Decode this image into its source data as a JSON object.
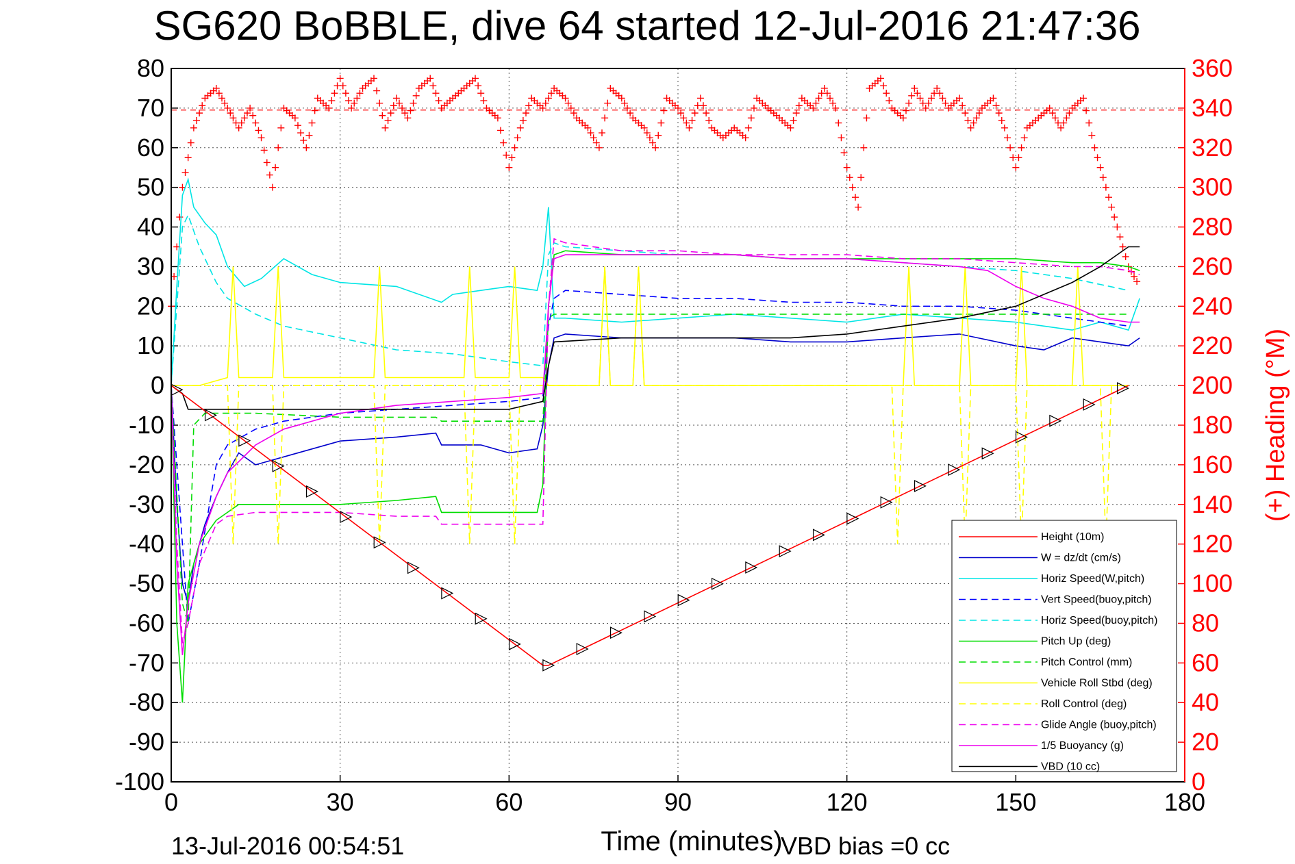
{
  "chart_data": {
    "type": "line",
    "title": "SG620 BoBBLE, dive 64 started 12-Jul-2016 21:47:36",
    "xlabel": "Time (minutes)",
    "ylabel_right": "(+) Heading (°M)",
    "xlim": [
      0,
      180
    ],
    "ylim": [
      -100,
      80
    ],
    "ylim_right": [
      0,
      360
    ],
    "x_ticks": [
      0,
      30,
      60,
      90,
      120,
      150,
      180
    ],
    "y_ticks": [
      80,
      70,
      60,
      50,
      40,
      30,
      20,
      10,
      0,
      -10,
      -20,
      -30,
      -40,
      -50,
      -60,
      -70,
      -80,
      -90,
      -100
    ],
    "y_right_ticks": [
      360,
      340,
      320,
      300,
      280,
      260,
      240,
      220,
      200,
      180,
      160,
      140,
      120,
      100,
      80,
      60,
      40,
      20,
      0
    ],
    "grid": true,
    "legend_position": "lower-right",
    "footer_left": "13-Jul-2016 00:54:51",
    "footer_center": "VBD bias =0 cc",
    "heading_reference": 339,
    "series": [
      {
        "name": "Height (10m)",
        "color": "#ff0000",
        "dash": "solid",
        "x": [
          0,
          66,
          67,
          170
        ],
        "y": [
          0,
          -70.6,
          -70.6,
          0
        ]
      },
      {
        "name": "W = dz/dt (cm/s)",
        "color": "#0000cc",
        "dash": "solid",
        "x": [
          0,
          1,
          2,
          3,
          4,
          6,
          8,
          10,
          12,
          15,
          20,
          30,
          40,
          47,
          48,
          55,
          60,
          65,
          66,
          67,
          68,
          70,
          80,
          90,
          100,
          110,
          120,
          130,
          140,
          150,
          155,
          160,
          165,
          170,
          172
        ],
        "y": [
          0,
          -30,
          -50,
          -55,
          -45,
          -35,
          -28,
          -22,
          -17,
          -20,
          -18,
          -14,
          -13,
          -12,
          -15,
          -15,
          -17,
          -16,
          -10,
          5,
          12,
          13,
          12,
          12,
          12,
          11,
          11,
          12,
          13,
          10,
          9,
          12,
          11,
          10,
          12
        ]
      },
      {
        "name": "Horiz Speed(W,pitch)",
        "color": "#00e5e5",
        "dash": "solid",
        "x": [
          0,
          1,
          2,
          3,
          4,
          6,
          8,
          10,
          13,
          16,
          20,
          25,
          30,
          40,
          48,
          50,
          55,
          60,
          65,
          66,
          67,
          68,
          70,
          80,
          90,
          100,
          110,
          120,
          130,
          140,
          150,
          155,
          160,
          165,
          170,
          172
        ],
        "y": [
          0,
          25,
          48,
          52,
          45,
          41,
          38,
          30,
          25,
          27,
          32,
          28,
          26,
          25,
          21,
          23,
          24,
          25,
          24,
          30,
          45,
          17,
          17,
          16,
          17,
          18,
          17,
          16,
          18,
          17,
          16,
          15,
          14,
          16,
          14,
          22
        ]
      },
      {
        "name": "Vert Speed(buoy,pitch)",
        "color": "#0000ff",
        "dash": "dashed",
        "x": [
          0,
          2,
          3,
          5,
          8,
          10,
          15,
          20,
          30,
          40,
          50,
          60,
          66,
          67,
          68,
          70,
          80,
          90,
          100,
          110,
          120,
          130,
          140,
          150,
          160,
          170
        ],
        "y": [
          0,
          -40,
          -60,
          -45,
          -20,
          -15,
          -11,
          -9,
          -7,
          -6,
          -5,
          -4,
          -3,
          15,
          22,
          24,
          23,
          22,
          22,
          21,
          21,
          20,
          20,
          19,
          17,
          15
        ]
      },
      {
        "name": "Horiz Speed(buoy,pitch)",
        "color": "#00e5e5",
        "dash": "dashed",
        "x": [
          0,
          2,
          3,
          5,
          8,
          10,
          15,
          20,
          30,
          40,
          50,
          60,
          66,
          67,
          68,
          70,
          80,
          90,
          100,
          110,
          120,
          130,
          140,
          150,
          160,
          170
        ],
        "y": [
          0,
          40,
          43,
          35,
          26,
          22,
          18,
          15,
          12,
          9,
          8,
          6,
          5,
          33,
          36,
          35,
          34,
          33,
          33,
          32,
          32,
          31,
          30,
          29,
          27,
          24
        ]
      },
      {
        "name": "Pitch Up (deg)",
        "color": "#00dd00",
        "dash": "solid",
        "x": [
          0,
          1,
          2,
          3,
          5,
          8,
          10,
          12,
          15,
          20,
          30,
          40,
          47,
          48,
          55,
          60,
          65,
          66,
          67,
          68,
          70,
          80,
          90,
          100,
          110,
          120,
          130,
          140,
          150,
          160,
          165,
          170,
          172
        ],
        "y": [
          0,
          -60,
          -80,
          -50,
          -40,
          -34,
          -32,
          -30,
          -30,
          -30,
          -30,
          -29,
          -28,
          -32,
          -32,
          -32,
          -32,
          -25,
          20,
          33,
          34,
          33,
          33,
          33,
          32,
          32,
          32,
          32,
          32,
          31,
          31,
          30,
          29
        ]
      },
      {
        "name": "Pitch Control (mm)",
        "color": "#00dd00",
        "dash": "dashed",
        "x": [
          0,
          2,
          3,
          4,
          6,
          15,
          30,
          47,
          48,
          66,
          67,
          68,
          70,
          90,
          110,
          120,
          130,
          140,
          150,
          170
        ],
        "y": [
          0,
          -55,
          -60,
          -10,
          -7,
          -7,
          -8,
          -8,
          -9,
          -9,
          17,
          18,
          18,
          18,
          18,
          18,
          18,
          18,
          18,
          18
        ]
      },
      {
        "name": "Vehicle Roll Stbd (deg)",
        "color": "#ffff00",
        "dash": "solid",
        "x": [
          0,
          5,
          10,
          11,
          12,
          18,
          19,
          20,
          36,
          37,
          38,
          52,
          53,
          54,
          60,
          61,
          62,
          66,
          67,
          68,
          76,
          77,
          78,
          82,
          83,
          84,
          90,
          110,
          130,
          131,
          132,
          140,
          141,
          142,
          150,
          151,
          152,
          160,
          161,
          162,
          170
        ],
        "y": [
          0,
          0,
          2,
          30,
          2,
          2,
          30,
          2,
          2,
          30,
          2,
          2,
          30,
          2,
          2,
          30,
          2,
          2,
          0,
          0,
          0,
          30,
          0,
          0,
          30,
          0,
          0,
          0,
          0,
          30,
          0,
          0,
          30,
          0,
          0,
          30,
          0,
          0,
          30,
          0,
          0
        ]
      },
      {
        "name": "Roll Control (deg)",
        "color": "#ffff00",
        "dash": "dashed",
        "x": [
          0,
          5,
          10,
          11,
          12,
          18,
          19,
          20,
          36,
          37,
          38,
          52,
          53,
          54,
          60,
          61,
          62,
          66,
          67,
          68,
          76,
          77,
          78,
          82,
          83,
          84,
          90,
          110,
          120,
          128,
          129,
          130,
          140,
          141,
          142,
          150,
          151,
          152,
          165,
          166,
          167,
          170
        ],
        "y": [
          0,
          0,
          0,
          -40,
          0,
          0,
          -40,
          0,
          0,
          -40,
          0,
          0,
          -40,
          0,
          0,
          -40,
          0,
          0,
          0,
          0,
          0,
          30,
          0,
          0,
          30,
          0,
          0,
          0,
          0,
          0,
          -40,
          0,
          0,
          -40,
          0,
          0,
          -40,
          0,
          0,
          -40,
          0,
          0
        ]
      },
      {
        "name": "Glide Angle (buoy,pitch)",
        "color": "#ee00ee",
        "dash": "dashed",
        "x": [
          0,
          1,
          2,
          3,
          5,
          8,
          10,
          15,
          20,
          30,
          40,
          47,
          48,
          60,
          66,
          67,
          68,
          70,
          80,
          90,
          100,
          110,
          120,
          130,
          140,
          150,
          160,
          165,
          170,
          172
        ],
        "y": [
          0,
          -40,
          -65,
          -60,
          -45,
          -35,
          -33,
          -32,
          -32,
          -32,
          -33,
          -33,
          -35,
          -35,
          -35,
          20,
          37,
          36,
          34,
          34,
          33,
          33,
          33,
          32,
          32,
          31,
          30,
          30,
          29,
          28
        ]
      },
      {
        "name": "1/5 Buoyancy (g)",
        "color": "#ee00ee",
        "dash": "solid",
        "x": [
          0,
          1,
          2,
          3,
          5,
          8,
          10,
          15,
          20,
          30,
          40,
          50,
          60,
          66,
          67,
          68,
          70,
          80,
          90,
          100,
          110,
          120,
          130,
          140,
          145,
          150,
          155,
          160,
          165,
          170,
          172
        ],
        "y": [
          0,
          -45,
          -68,
          -55,
          -40,
          -28,
          -22,
          -15,
          -11,
          -7,
          -5,
          -4,
          -3,
          -2,
          20,
          32,
          33,
          33,
          33,
          33,
          32,
          32,
          31,
          30,
          29,
          25,
          22,
          20,
          17,
          16,
          16
        ]
      },
      {
        "name": "VBD (10 cc)",
        "color": "#000000",
        "dash": "solid",
        "x": [
          0,
          2,
          3,
          60,
          66,
          67,
          68,
          80,
          90,
          110,
          120,
          130,
          140,
          150,
          155,
          160,
          165,
          170,
          172
        ],
        "y": [
          0,
          -2,
          -6,
          -6,
          -4,
          5,
          11,
          12,
          12,
          12,
          13,
          15,
          17,
          20,
          23,
          26,
          30,
          35,
          35
        ]
      }
    ],
    "heading_series": {
      "name": "Heading",
      "color": "#ff0000",
      "marker": "+",
      "x": [
        0,
        2,
        4,
        6,
        8,
        10,
        12,
        14,
        16,
        18,
        20,
        22,
        24,
        26,
        28,
        30,
        32,
        34,
        36,
        38,
        40,
        42,
        44,
        46,
        48,
        50,
        52,
        54,
        56,
        58,
        60,
        62,
        64,
        66,
        68,
        70,
        72,
        74,
        76,
        78,
        80,
        82,
        84,
        86,
        88,
        90,
        92,
        94,
        96,
        98,
        100,
        102,
        104,
        106,
        108,
        110,
        112,
        114,
        116,
        118,
        120,
        122,
        124,
        126,
        128,
        130,
        132,
        134,
        136,
        138,
        140,
        142,
        144,
        146,
        148,
        150,
        152,
        154,
        156,
        158,
        160,
        162,
        164,
        166,
        168,
        170,
        172
      ],
      "y": [
        240,
        300,
        330,
        345,
        350,
        340,
        330,
        340,
        325,
        300,
        340,
        335,
        320,
        345,
        340,
        355,
        340,
        350,
        355,
        330,
        345,
        335,
        350,
        355,
        340,
        345,
        350,
        355,
        340,
        335,
        310,
        330,
        345,
        340,
        350,
        345,
        335,
        330,
        320,
        350,
        345,
        335,
        330,
        320,
        345,
        340,
        330,
        345,
        330,
        325,
        330,
        325,
        345,
        340,
        335,
        330,
        345,
        340,
        350,
        340,
        310,
        290,
        350,
        355,
        340,
        335,
        350,
        340,
        350,
        340,
        345,
        330,
        340,
        345,
        330,
        310,
        330,
        335,
        340,
        330,
        340,
        345,
        320,
        300,
        280,
        260,
        250
      ]
    }
  }
}
